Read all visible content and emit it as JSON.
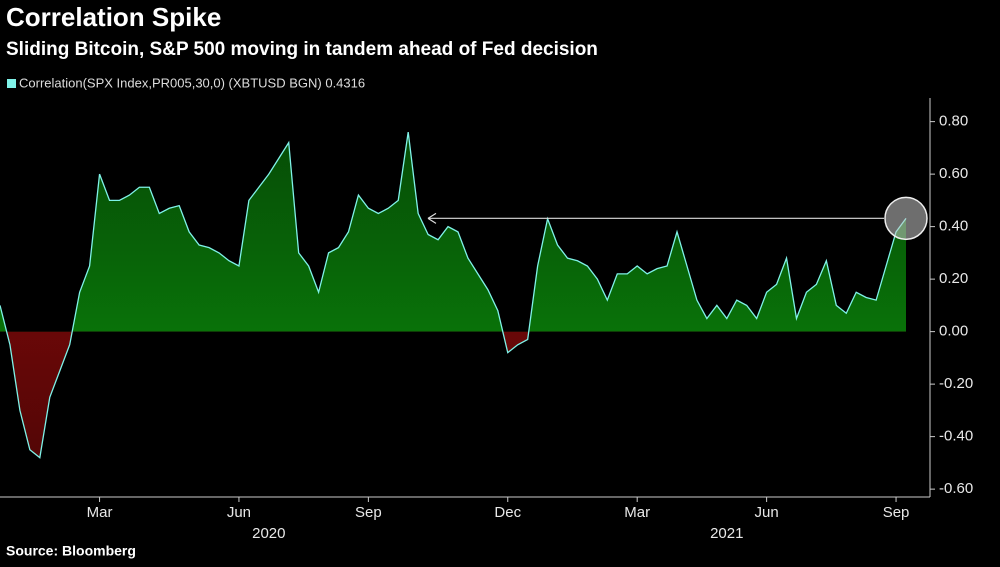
{
  "chart_data": {
    "type": "area",
    "title": "Correlation Spike",
    "subtitle": "Sliding Bitcoin, S&P 500 moving in tandem ahead of Fed decision",
    "source": "Source: Bloomberg",
    "categories": [
      null,
      null,
      null,
      null,
      null,
      null,
      null,
      null,
      null,
      null,
      "Mar",
      null,
      null,
      null,
      null,
      null,
      null,
      null,
      null,
      null,
      null,
      null,
      null,
      null,
      "Jun",
      null,
      null,
      null,
      null,
      null,
      null,
      null,
      null,
      null,
      null,
      null,
      null,
      "Sep",
      null,
      null,
      null,
      null,
      null,
      null,
      null,
      null,
      null,
      null,
      null,
      null,
      null,
      "Dec",
      null,
      null,
      null,
      null,
      null,
      null,
      null,
      null,
      null,
      null,
      null,
      null,
      "Mar",
      null,
      null,
      null,
      null,
      null,
      null,
      null,
      null,
      null,
      null,
      null,
      null,
      "Jun",
      null,
      null,
      null,
      null,
      null,
      null,
      null,
      null,
      null,
      null,
      null,
      null,
      "Sep",
      null
    ],
    "year_categories": [
      null,
      null,
      null,
      null,
      null,
      null,
      null,
      null,
      null,
      null,
      null,
      null,
      null,
      null,
      null,
      null,
      null,
      null,
      null,
      null,
      null,
      null,
      null,
      null,
      null,
      null,
      null,
      "2020",
      null,
      null,
      null,
      null,
      null,
      null,
      null,
      null,
      null,
      null,
      null,
      null,
      null,
      null,
      null,
      null,
      null,
      null,
      null,
      null,
      null,
      null,
      null,
      null,
      null,
      null,
      null,
      null,
      null,
      null,
      null,
      null,
      null,
      null,
      null,
      null,
      null,
      null,
      null,
      null,
      null,
      null,
      null,
      null,
      null,
      "2021",
      null,
      null,
      null,
      null,
      null,
      null,
      null,
      null,
      null,
      null,
      null,
      null,
      null,
      null,
      null,
      null,
      null,
      null
    ],
    "series": [
      {
        "name": "Correlation(SPX Index,PR005,30,0) (XBTUSD BGN) 0.4316",
        "color": "#7ff2e8",
        "values": [
          0.1,
          -0.05,
          -0.3,
          -0.45,
          -0.48,
          -0.25,
          -0.15,
          -0.05,
          0.15,
          0.25,
          0.6,
          0.5,
          0.5,
          0.52,
          0.55,
          0.55,
          0.45,
          0.47,
          0.48,
          0.38,
          0.33,
          0.32,
          0.3,
          0.27,
          0.25,
          0.5,
          0.55,
          0.6,
          0.66,
          0.72,
          0.3,
          0.25,
          0.15,
          0.3,
          0.32,
          0.38,
          0.52,
          0.47,
          0.45,
          0.47,
          0.5,
          0.76,
          0.45,
          0.37,
          0.35,
          0.4,
          0.38,
          0.28,
          0.22,
          0.16,
          0.08,
          -0.08,
          -0.05,
          -0.03,
          0.25,
          0.43,
          0.33,
          0.28,
          0.27,
          0.25,
          0.2,
          0.12,
          0.22,
          0.22,
          0.25,
          0.22,
          0.24,
          0.25,
          0.38,
          0.25,
          0.12,
          0.05,
          0.1,
          0.05,
          0.12,
          0.1,
          0.05,
          0.15,
          0.18,
          0.28,
          0.05,
          0.15,
          0.18,
          0.27,
          0.1,
          0.07,
          0.15,
          0.13,
          0.12,
          0.25,
          0.38,
          0.4316
        ]
      }
    ],
    "positive_color": "#0b8a0b",
    "negative_color": "#8b0a0a",
    "ylim": [
      -0.63,
      0.89
    ],
    "yticks": [
      {
        "value": 0.8,
        "label": "0.80"
      },
      {
        "value": 0.6,
        "label": "0.60"
      },
      {
        "value": 0.4,
        "label": "0.40"
      },
      {
        "value": 0.2,
        "label": "0.20"
      },
      {
        "value": 0,
        "label": "0.00"
      },
      {
        "value": -0.2,
        "label": "-0.20"
      },
      {
        "value": -0.4,
        "label": "-0.40"
      },
      {
        "value": -0.6,
        "label": "-0.60"
      }
    ]
  }
}
